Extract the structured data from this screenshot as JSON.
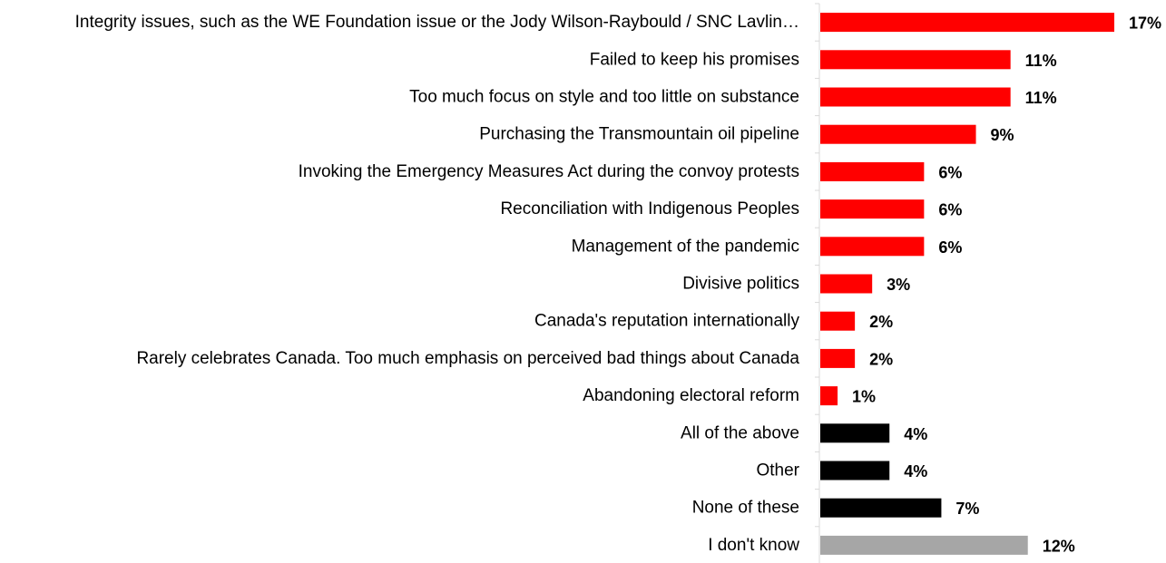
{
  "chart_data": {
    "type": "bar",
    "orientation": "horizontal",
    "categories": [
      "Integrity issues, such as the WE Foundation issue or the Jody Wilson-Raybould / SNC Lavlin…",
      "Failed to keep his promises",
      "Too much focus on style and too little on substance",
      "Purchasing the Transmountain oil pipeline",
      "Invoking the Emergency Measures Act during the convoy protests",
      "Reconciliation with Indigenous Peoples",
      "Management of the pandemic",
      "Divisive politics",
      "Canada's reputation internationally",
      "Rarely celebrates Canada. Too much emphasis on perceived bad things about Canada",
      "Abandoning electoral reform",
      "All of the above",
      "Other",
      "None of these",
      "I don't know"
    ],
    "values": [
      17,
      11,
      11,
      9,
      6,
      6,
      6,
      3,
      2,
      2,
      1,
      4,
      4,
      7,
      12
    ],
    "value_labels": [
      "17%",
      "11%",
      "11%",
      "9%",
      "6%",
      "6%",
      "6%",
      "3%",
      "2%",
      "2%",
      "1%",
      "4%",
      "4%",
      "7%",
      "12%"
    ],
    "bar_colors": [
      "#ff0000",
      "#ff0000",
      "#ff0000",
      "#ff0000",
      "#ff0000",
      "#ff0000",
      "#ff0000",
      "#ff0000",
      "#ff0000",
      "#ff0000",
      "#ff0000",
      "#000000",
      "#000000",
      "#000000",
      "#a6a6a6"
    ],
    "xlim": [
      0,
      17
    ],
    "title": "",
    "xlabel": "",
    "ylabel": "",
    "grid": false,
    "legend": "none"
  }
}
